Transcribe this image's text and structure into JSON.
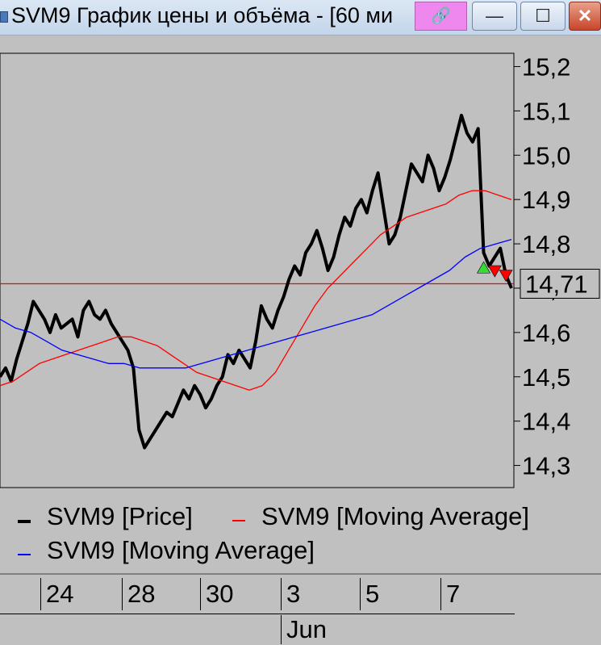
{
  "window": {
    "title": "SVM9 График цены и объёма - [60 ми",
    "link_glyph": "🔗",
    "min_glyph": "—",
    "max_glyph": "☐",
    "close_glyph": "✕"
  },
  "legend": {
    "items": [
      {
        "label": "SVM9 [Price]",
        "color": "#000000"
      },
      {
        "label": "SVM9 [Moving Average]",
        "color": "#ff0000"
      },
      {
        "label": "SVM9 [Moving Average]",
        "color": "#0000ff"
      }
    ]
  },
  "xaxis": {
    "ticks": [
      "24",
      "28",
      "30",
      "3",
      "5",
      "7"
    ],
    "month": "Jun"
  },
  "chart_data": {
    "type": "line",
    "ylim": [
      14.25,
      15.23
    ],
    "yticks": [
      "15,2",
      "15,1",
      "15,0",
      "14,9",
      "14,8",
      "14,7",
      "14,6",
      "14,5",
      "14,4",
      "14,3"
    ],
    "ytick_values": [
      15.2,
      15.1,
      15.0,
      14.9,
      14.8,
      14.7,
      14.6,
      14.5,
      14.4,
      14.3
    ],
    "last_price_label": "14,71",
    "last_price": 14.71,
    "price_color": "#000000",
    "hline_color": "#ff0000",
    "series": [
      {
        "name": "SVM9 [Price]",
        "color": "#000000",
        "values": [
          14.5,
          14.52,
          14.49,
          14.54,
          14.58,
          14.62,
          14.67,
          14.65,
          14.63,
          14.6,
          14.64,
          14.61,
          14.62,
          14.63,
          14.59,
          14.65,
          14.67,
          14.64,
          14.63,
          14.65,
          14.62,
          14.6,
          14.58,
          14.56,
          14.52,
          14.38,
          14.34,
          14.36,
          14.38,
          14.4,
          14.42,
          14.41,
          14.44,
          14.47,
          14.45,
          14.48,
          14.46,
          14.43,
          14.45,
          14.48,
          14.5,
          14.55,
          14.53,
          14.56,
          14.54,
          14.52,
          14.58,
          14.66,
          14.63,
          14.61,
          14.65,
          14.68,
          14.72,
          14.75,
          14.73,
          14.78,
          14.8,
          14.83,
          14.79,
          14.74,
          14.77,
          14.82,
          14.86,
          14.84,
          14.88,
          14.9,
          14.87,
          14.92,
          14.96,
          14.88,
          14.8,
          14.82,
          14.86,
          14.92,
          14.98,
          14.96,
          14.94,
          15.0,
          14.97,
          14.92,
          14.95,
          14.99,
          15.04,
          15.09,
          15.05,
          15.03,
          15.06,
          14.78,
          14.75,
          14.77,
          14.79,
          14.73,
          14.7
        ]
      },
      {
        "name": "SVM9 [Moving Average]",
        "color": "#ff0000",
        "values": [
          14.48,
          14.49,
          14.51,
          14.53,
          14.54,
          14.55,
          14.56,
          14.57,
          14.58,
          14.59,
          14.59,
          14.58,
          14.57,
          14.55,
          14.53,
          14.51,
          14.5,
          14.49,
          14.48,
          14.47,
          14.48,
          14.51,
          14.56,
          14.61,
          14.66,
          14.7,
          14.73,
          14.76,
          14.79,
          14.82,
          14.84,
          14.86,
          14.87,
          14.88,
          14.89,
          14.91,
          14.92,
          14.92,
          14.91,
          14.9
        ]
      },
      {
        "name": "SVM9 [Moving Average]",
        "color": "#0000ff",
        "values": [
          14.63,
          14.61,
          14.6,
          14.58,
          14.56,
          14.55,
          14.54,
          14.53,
          14.53,
          14.52,
          14.52,
          14.52,
          14.52,
          14.53,
          14.54,
          14.55,
          14.56,
          14.57,
          14.58,
          14.59,
          14.6,
          14.61,
          14.62,
          14.63,
          14.64,
          14.66,
          14.68,
          14.7,
          14.72,
          14.74,
          14.77,
          14.79,
          14.8,
          14.81
        ]
      }
    ],
    "markers": [
      {
        "type": "buy",
        "index": 87,
        "value": 14.745,
        "color": "#33dd33"
      },
      {
        "type": "sell",
        "index": 89,
        "value": 14.74,
        "color": "#ff0000"
      },
      {
        "type": "sell",
        "index": 91,
        "value": 14.73,
        "color": "#ff0000"
      }
    ]
  }
}
